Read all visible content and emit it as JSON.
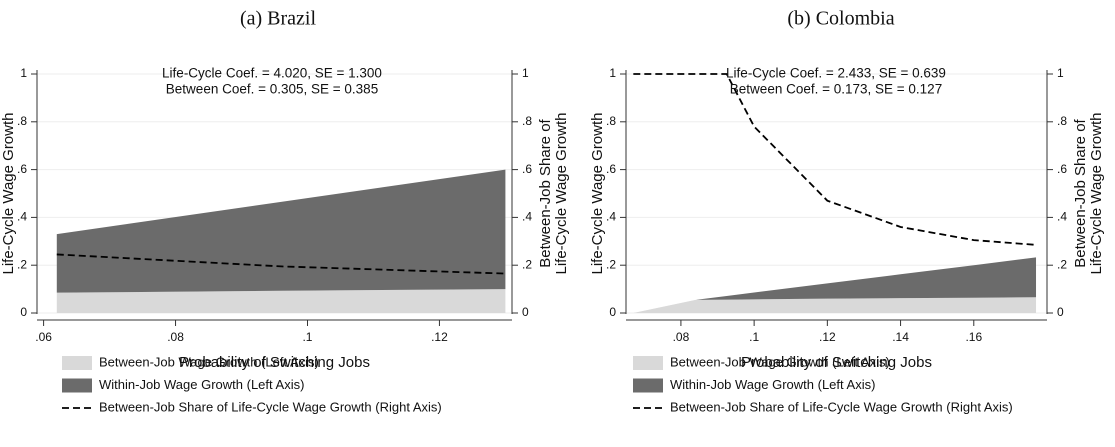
{
  "chart_data": [
    {
      "type": "area",
      "title": "(a) Brazil",
      "annotations": [
        "Life-Cycle Coef. = 4.020, SE = 1.300",
        "Between Coef. = 0.305, SE = 0.385"
      ],
      "xlabel": "Probability of Switching Jobs",
      "ylabel": "Life-Cycle Wage Growth",
      "y2label": [
        "Between-Job Share of",
        "Life-Cycle Wage Growth"
      ],
      "x": [
        0.062,
        0.096,
        0.13
      ],
      "series": [
        {
          "name": "Between-Job Wage Growth (Left Axis)",
          "type": "area",
          "color": "#d9d9d9",
          "values": [
            0.085,
            0.093,
            0.1
          ]
        },
        {
          "name": "Within-Job Wage Growth (Left Axis)",
          "type": "area",
          "color": "#6b6b6b",
          "values": [
            0.245,
            0.372,
            0.5
          ]
        },
        {
          "name": "Between-Job Share of Life-Cycle Wage Growth (Right Axis)",
          "type": "line",
          "line_style": "dashed",
          "color": "#000000",
          "axis": "y2",
          "values": [
            0.245,
            0.195,
            0.165
          ]
        }
      ],
      "stacked": true,
      "grid": true,
      "xlim": [
        0.059,
        0.131
      ],
      "xticks": [
        {
          "value": 0.06,
          "label": ".06"
        },
        {
          "value": 0.08,
          "label": ".08"
        },
        {
          "value": 0.1,
          "label": ".1"
        },
        {
          "value": 0.12,
          "label": ".12"
        }
      ],
      "ylim": [
        0,
        1
      ],
      "yticks": [
        0,
        {
          "value": 0.2,
          "label": ".2"
        },
        {
          "value": 0.4,
          "label": ".4"
        },
        {
          "value": 0.6,
          "label": ".6"
        },
        {
          "value": 0.8,
          "label": ".8"
        },
        1
      ],
      "y2lim": [
        0,
        1
      ],
      "y2ticks": [
        0,
        {
          "value": 0.2,
          "label": ".2"
        },
        {
          "value": 0.4,
          "label": ".4"
        },
        {
          "value": 0.6,
          "label": ".6"
        },
        {
          "value": 0.8,
          "label": ".8"
        },
        1
      ]
    },
    {
      "type": "area",
      "title": "(b) Colombia",
      "annotations": [
        "Life-Cycle Coef. = 2.433, SE = 0.639",
        "Between Coef. = 0.173, SE = 0.127"
      ],
      "xlabel": "Probability of Switching Jobs",
      "ylabel": "Life-Cycle Wage Growth",
      "y2label": [
        "Between-Job Share of",
        "Life-Cycle Wage Growth"
      ],
      "x": [
        0.067,
        0.084,
        0.0925,
        0.1,
        0.12,
        0.14,
        0.16,
        0.177
      ],
      "series": [
        {
          "name": "Between-Job Wage Growth (Left Axis)",
          "type": "area",
          "color": "#d9d9d9",
          "values": [
            0,
            0.055,
            0.056,
            0.057,
            0.06,
            0.062,
            0.064,
            0.066
          ]
        },
        {
          "name": "Within-Job Wage Growth (Left Axis)",
          "type": "area",
          "color": "#6b6b6b",
          "values": [
            0,
            0,
            0.015,
            0.029,
            0.064,
            0.1,
            0.136,
            0.167
          ]
        },
        {
          "name": "Between-Job Share of Life-Cycle Wage Growth (Right Axis)",
          "type": "line",
          "line_style": "dashed",
          "color": "#000000",
          "axis": "y2",
          "values": [
            1,
            1,
            1,
            0.78,
            0.47,
            0.36,
            0.305,
            0.285
          ]
        }
      ],
      "stacked": true,
      "grid": true,
      "xlim": [
        0.065,
        0.18
      ],
      "xticks": [
        {
          "value": 0.08,
          "label": ".08"
        },
        {
          "value": 0.1,
          "label": ".1"
        },
        {
          "value": 0.12,
          "label": ".12"
        },
        {
          "value": 0.14,
          "label": ".14"
        },
        {
          "value": 0.16,
          "label": ".16"
        }
      ],
      "ylim": [
        0,
        1
      ],
      "yticks": [
        0,
        {
          "value": 0.2,
          "label": ".2"
        },
        {
          "value": 0.4,
          "label": ".4"
        },
        {
          "value": 0.6,
          "label": ".6"
        },
        {
          "value": 0.8,
          "label": ".8"
        },
        1
      ],
      "y2lim": [
        0,
        1
      ],
      "y2ticks": [
        0,
        {
          "value": 0.2,
          "label": ".2"
        },
        {
          "value": 0.4,
          "label": ".4"
        },
        {
          "value": 0.6,
          "label": ".6"
        },
        {
          "value": 0.8,
          "label": ".8"
        },
        1
      ]
    }
  ]
}
